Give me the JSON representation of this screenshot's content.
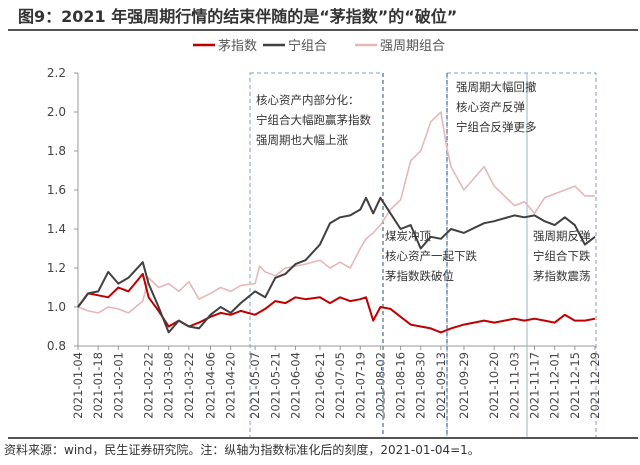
{
  "title": "图9：2021 年强周期行情的结束伴随的是“茅指数”的“破位”",
  "footer": "资料来源：wind，民生证券研究院。注：纵轴为指数标准化后的刻度，2021-01-04=1。",
  "chart_data": {
    "type": "line",
    "ylim": [
      0.8,
      2.2
    ],
    "yticks": [
      "0.8",
      "1.0",
      "1.2",
      "1.4",
      "1.6",
      "1.8",
      "2.0",
      "2.2"
    ],
    "xticks": [
      "2021-01-04",
      "2021-01-18",
      "2021-02-01",
      "2021-02-22",
      "2021-03-08",
      "2021-03-22",
      "2021-04-06",
      "2021-04-20",
      "2021-05-07",
      "2021-05-21",
      "2021-06-04",
      "2021-06-21",
      "2021-07-05",
      "2021-07-19",
      "2021-08-02",
      "2021-08-16",
      "2021-08-30",
      "2021-09-13",
      "2021-09-29",
      "2021-10-20",
      "2021-11-03",
      "2021-11-17",
      "2021-12-01",
      "2021-12-15",
      "2021-12-29"
    ],
    "legend_position": "top-center",
    "series": [
      {
        "name": "茅指数",
        "color": "#c00000",
        "points": [
          [
            "2021-01-04",
            1.0
          ],
          [
            "2021-01-11",
            1.07
          ],
          [
            "2021-01-18",
            1.06
          ],
          [
            "2021-01-25",
            1.05
          ],
          [
            "2021-02-01",
            1.1
          ],
          [
            "2021-02-08",
            1.08
          ],
          [
            "2021-02-18",
            1.17
          ],
          [
            "2021-02-22",
            1.05
          ],
          [
            "2021-03-01",
            0.98
          ],
          [
            "2021-03-08",
            0.9
          ],
          [
            "2021-03-15",
            0.93
          ],
          [
            "2021-03-22",
            0.9
          ],
          [
            "2021-03-29",
            0.92
          ],
          [
            "2021-04-06",
            0.95
          ],
          [
            "2021-04-13",
            0.97
          ],
          [
            "2021-04-20",
            0.96
          ],
          [
            "2021-04-27",
            0.98
          ],
          [
            "2021-05-07",
            0.96
          ],
          [
            "2021-05-14",
            0.99
          ],
          [
            "2021-05-21",
            1.03
          ],
          [
            "2021-05-28",
            1.02
          ],
          [
            "2021-06-04",
            1.05
          ],
          [
            "2021-06-11",
            1.04
          ],
          [
            "2021-06-21",
            1.05
          ],
          [
            "2021-06-28",
            1.02
          ],
          [
            "2021-07-05",
            1.05
          ],
          [
            "2021-07-12",
            1.03
          ],
          [
            "2021-07-19",
            1.04
          ],
          [
            "2021-07-23",
            1.05
          ],
          [
            "2021-07-28",
            0.93
          ],
          [
            "2021-08-02",
            1.0
          ],
          [
            "2021-08-09",
            0.99
          ],
          [
            "2021-08-16",
            0.95
          ],
          [
            "2021-08-23",
            0.91
          ],
          [
            "2021-08-30",
            0.9
          ],
          [
            "2021-09-06",
            0.89
          ],
          [
            "2021-09-13",
            0.87
          ],
          [
            "2021-09-20",
            0.89
          ],
          [
            "2021-09-29",
            0.91
          ],
          [
            "2021-10-13",
            0.93
          ],
          [
            "2021-10-20",
            0.92
          ],
          [
            "2021-11-03",
            0.94
          ],
          [
            "2021-11-10",
            0.93
          ],
          [
            "2021-11-17",
            0.94
          ],
          [
            "2021-11-24",
            0.93
          ],
          [
            "2021-12-01",
            0.92
          ],
          [
            "2021-12-08",
            0.96
          ],
          [
            "2021-12-15",
            0.93
          ],
          [
            "2021-12-22",
            0.93
          ],
          [
            "2021-12-29",
            0.94
          ]
        ]
      },
      {
        "name": "宁组合",
        "color": "#404040",
        "points": [
          [
            "2021-01-04",
            1.0
          ],
          [
            "2021-01-11",
            1.07
          ],
          [
            "2021-01-18",
            1.08
          ],
          [
            "2021-01-25",
            1.18
          ],
          [
            "2021-02-01",
            1.12
          ],
          [
            "2021-02-08",
            1.15
          ],
          [
            "2021-02-18",
            1.23
          ],
          [
            "2021-02-22",
            1.12
          ],
          [
            "2021-03-01",
            1.0
          ],
          [
            "2021-03-08",
            0.87
          ],
          [
            "2021-03-15",
            0.93
          ],
          [
            "2021-03-22",
            0.9
          ],
          [
            "2021-03-29",
            0.89
          ],
          [
            "2021-04-06",
            0.96
          ],
          [
            "2021-04-13",
            1.0
          ],
          [
            "2021-04-20",
            0.97
          ],
          [
            "2021-04-27",
            1.02
          ],
          [
            "2021-05-07",
            1.08
          ],
          [
            "2021-05-14",
            1.05
          ],
          [
            "2021-05-21",
            1.15
          ],
          [
            "2021-05-28",
            1.17
          ],
          [
            "2021-06-04",
            1.22
          ],
          [
            "2021-06-11",
            1.24
          ],
          [
            "2021-06-21",
            1.32
          ],
          [
            "2021-06-28",
            1.43
          ],
          [
            "2021-07-05",
            1.46
          ],
          [
            "2021-07-12",
            1.47
          ],
          [
            "2021-07-19",
            1.5
          ],
          [
            "2021-07-23",
            1.56
          ],
          [
            "2021-07-28",
            1.48
          ],
          [
            "2021-08-02",
            1.56
          ],
          [
            "2021-08-09",
            1.48
          ],
          [
            "2021-08-16",
            1.4
          ],
          [
            "2021-08-23",
            1.42
          ],
          [
            "2021-08-30",
            1.3
          ],
          [
            "2021-09-06",
            1.36
          ],
          [
            "2021-09-13",
            1.35
          ],
          [
            "2021-09-20",
            1.4
          ],
          [
            "2021-09-29",
            1.38
          ],
          [
            "2021-10-13",
            1.43
          ],
          [
            "2021-10-20",
            1.44
          ],
          [
            "2021-11-03",
            1.47
          ],
          [
            "2021-11-10",
            1.46
          ],
          [
            "2021-11-17",
            1.47
          ],
          [
            "2021-11-24",
            1.44
          ],
          [
            "2021-12-01",
            1.42
          ],
          [
            "2021-12-08",
            1.46
          ],
          [
            "2021-12-15",
            1.42
          ],
          [
            "2021-12-22",
            1.32
          ],
          [
            "2021-12-29",
            1.36
          ]
        ]
      },
      {
        "name": "强周期组合",
        "color": "#e6b8b8",
        "points": [
          [
            "2021-01-04",
            1.0
          ],
          [
            "2021-01-11",
            0.98
          ],
          [
            "2021-01-18",
            0.97
          ],
          [
            "2021-01-25",
            1.0
          ],
          [
            "2021-02-01",
            0.99
          ],
          [
            "2021-02-08",
            0.97
          ],
          [
            "2021-02-18",
            1.03
          ],
          [
            "2021-02-22",
            1.15
          ],
          [
            "2021-03-01",
            1.1
          ],
          [
            "2021-03-08",
            1.12
          ],
          [
            "2021-03-15",
            1.08
          ],
          [
            "2021-03-22",
            1.13
          ],
          [
            "2021-03-29",
            1.04
          ],
          [
            "2021-04-06",
            1.07
          ],
          [
            "2021-04-13",
            1.1
          ],
          [
            "2021-04-20",
            1.08
          ],
          [
            "2021-04-27",
            1.11
          ],
          [
            "2021-05-07",
            1.12
          ],
          [
            "2021-05-10",
            1.21
          ],
          [
            "2021-05-14",
            1.18
          ],
          [
            "2021-05-21",
            1.16
          ],
          [
            "2021-05-28",
            1.2
          ],
          [
            "2021-06-04",
            1.21
          ],
          [
            "2021-06-11",
            1.22
          ],
          [
            "2021-06-21",
            1.24
          ],
          [
            "2021-06-28",
            1.2
          ],
          [
            "2021-07-05",
            1.23
          ],
          [
            "2021-07-12",
            1.2
          ],
          [
            "2021-07-19",
            1.3
          ],
          [
            "2021-07-23",
            1.35
          ],
          [
            "2021-07-28",
            1.38
          ],
          [
            "2021-08-02",
            1.42
          ],
          [
            "2021-08-09",
            1.5
          ],
          [
            "2021-08-16",
            1.55
          ],
          [
            "2021-08-23",
            1.75
          ],
          [
            "2021-08-30",
            1.8
          ],
          [
            "2021-09-06",
            1.95
          ],
          [
            "2021-09-13",
            2.0
          ],
          [
            "2021-09-17",
            1.82
          ],
          [
            "2021-09-20",
            1.72
          ],
          [
            "2021-09-29",
            1.6
          ],
          [
            "2021-10-13",
            1.72
          ],
          [
            "2021-10-20",
            1.62
          ],
          [
            "2021-11-03",
            1.52
          ],
          [
            "2021-11-10",
            1.54
          ],
          [
            "2021-11-17",
            1.48
          ],
          [
            "2021-11-24",
            1.56
          ],
          [
            "2021-12-01",
            1.58
          ],
          [
            "2021-12-08",
            1.6
          ],
          [
            "2021-12-15",
            1.62
          ],
          [
            "2021-12-22",
            1.57
          ],
          [
            "2021-12-29",
            1.57
          ]
        ]
      }
    ],
    "annotations": [
      {
        "lines": [
          "核心资产内部分化：",
          "宁组合大幅跑赢茅指数",
          "强周期也大幅上涨"
        ]
      },
      {
        "lines": [
          "强周期大幅回撤",
          "核心资产反弹",
          "宁组合反弹更多"
        ]
      },
      {
        "lines": [
          "煤炭冲顶",
          "核心资产一起下跌",
          "茅指数跌破位"
        ]
      },
      {
        "lines": [
          "强周期反弹",
          "宁组合下跌",
          "茅指数震荡"
        ]
      }
    ]
  }
}
